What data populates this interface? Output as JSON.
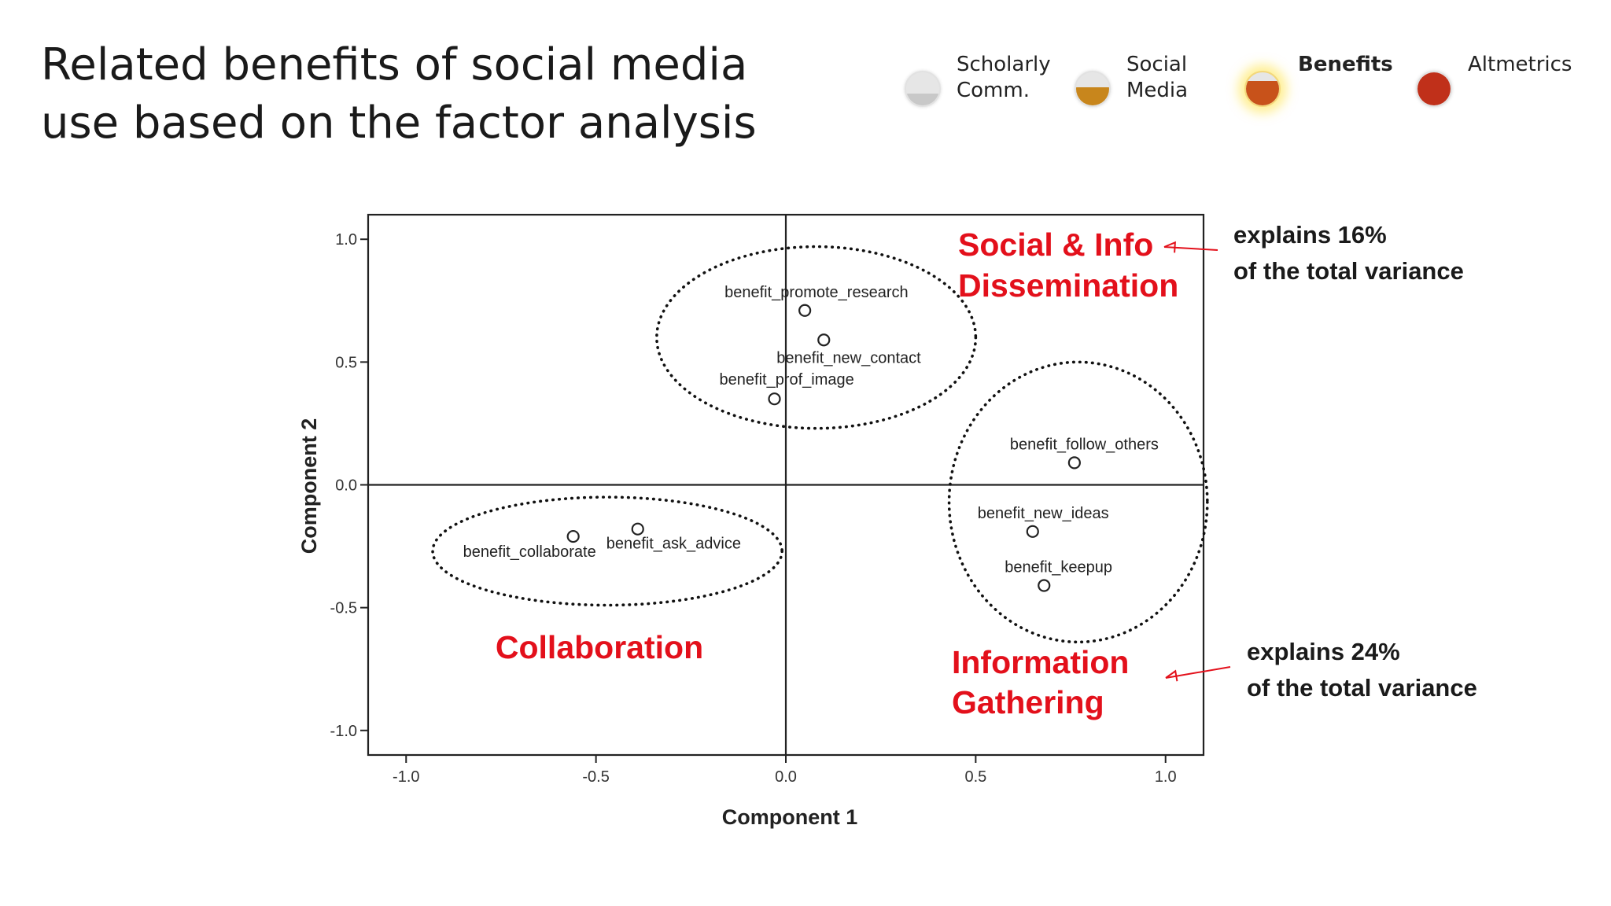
{
  "title": {
    "line1": "Related benefits of social media",
    "line2": "use based on the factor analysis"
  },
  "nav": [
    {
      "line1": "Scholarly",
      "line2": "Comm.",
      "active": false,
      "color": "#c8c8c8",
      "level": 0.35
    },
    {
      "line1": "Social",
      "line2": "Media",
      "active": false,
      "color": "#c8861c",
      "level": 0.55
    },
    {
      "line1": "",
      "line2": "Benefits",
      "active": true,
      "color": "#c8521a",
      "level": 0.75
    },
    {
      "line1": "",
      "line2": "Altmetrics",
      "active": false,
      "color": "#c0301a",
      "level": 1.0
    }
  ],
  "chart_data": {
    "type": "scatter",
    "xlabel": "Component 1",
    "ylabel": "Component 2",
    "xlim": [
      -1.1,
      1.1
    ],
    "ylim": [
      -1.1,
      1.1
    ],
    "xticks": [
      -1.0,
      -0.5,
      0.0,
      0.5,
      1.0
    ],
    "xtick_labels": [
      "-1.0",
      "-0.5",
      "0.0",
      "0.5",
      "1.0"
    ],
    "yticks": [
      1.0,
      0.5,
      0.0,
      -0.5,
      -1.0
    ],
    "ytick_labels": [
      "1.0",
      "0.5",
      "0.0",
      "-0.5",
      "-1.0"
    ],
    "grid": false,
    "reference_lines": {
      "x": 0.0,
      "y": 0.0
    },
    "points": [
      {
        "label": "benefit_promote_research",
        "x": 0.05,
        "y": 0.71
      },
      {
        "label": "benefit_new_contact",
        "x": 0.1,
        "y": 0.59
      },
      {
        "label": "benefit_prof_image",
        "x": -0.03,
        "y": 0.35
      },
      {
        "label": "benefit_follow_others",
        "x": 0.76,
        "y": 0.09
      },
      {
        "label": "benefit_new_ideas",
        "x": 0.65,
        "y": -0.19
      },
      {
        "label": "benefit_keepup",
        "x": 0.68,
        "y": -0.41
      },
      {
        "label": "benefit_collaborate",
        "x": -0.56,
        "y": -0.21
      },
      {
        "label": "benefit_ask_advice",
        "x": -0.39,
        "y": -0.18
      }
    ],
    "clusters": [
      {
        "line1": "Social & Info",
        "line2": "Dissemination",
        "cx": 0.08,
        "cy": 0.6,
        "rx": 0.42,
        "ry": 0.37
      },
      {
        "line1": "Information",
        "line2": "Gathering",
        "cx": 0.77,
        "cy": -0.07,
        "rx": 0.34,
        "ry": 0.57
      },
      {
        "line1": "Collaboration",
        "line2": "",
        "cx": -0.47,
        "cy": -0.27,
        "rx": 0.46,
        "ry": 0.22
      }
    ],
    "cluster_color": "#e3101b",
    "notes": [
      {
        "line1": "explains 16%",
        "line2": "of the total variance"
      },
      {
        "line1": "explains 24%",
        "line2": "of the total variance"
      }
    ]
  }
}
